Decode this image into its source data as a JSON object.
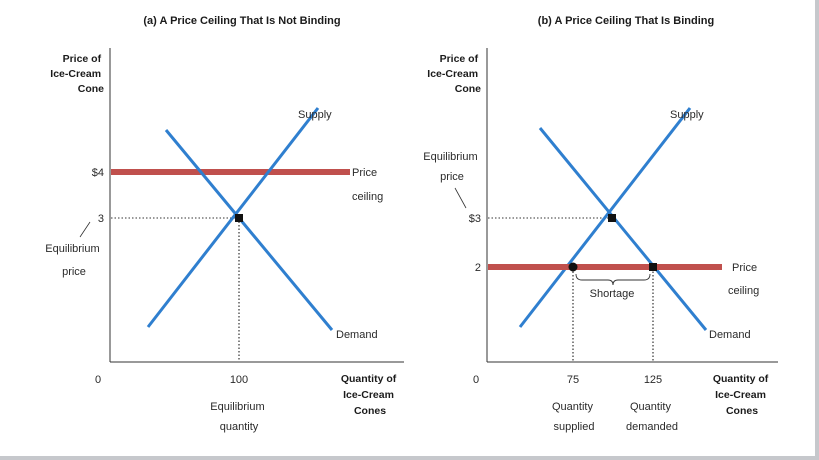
{
  "panels": [
    {
      "title": "(a) A Price Ceiling That Is Not Binding",
      "y_axis_label": [
        "Price of",
        "Ice-Cream",
        "Cone"
      ],
      "x_axis_label": [
        "Quantity of",
        "Ice-Cream",
        "Cones"
      ],
      "x_ticks": [
        "0",
        "100"
      ],
      "y_ticks": [
        "$4",
        "3"
      ],
      "supply_label": "Supply",
      "demand_label": "Demand",
      "ceiling_label": [
        "Price",
        "ceiling"
      ],
      "eq_price_label": [
        "Equilibrium",
        "price"
      ],
      "eq_quantity_label": [
        "Equilibrium",
        "quantity"
      ]
    },
    {
      "title": "(b) A Price Ceiling That Is Binding",
      "y_axis_label": [
        "Price of",
        "Ice-Cream",
        "Cone"
      ],
      "x_axis_label": [
        "Quantity of",
        "Ice-Cream",
        "Cones"
      ],
      "x_ticks": [
        "0",
        "75",
        "125"
      ],
      "y_ticks": [
        "$3",
        "2"
      ],
      "supply_label": "Supply",
      "demand_label": "Demand",
      "ceiling_label": [
        "Price",
        "ceiling"
      ],
      "eq_price_label": [
        "Equilibrium",
        "price"
      ],
      "shortage_label": "Shortage",
      "qs_label": [
        "Quantity",
        "supplied"
      ],
      "qd_label": [
        "Quantity",
        "demanded"
      ]
    }
  ],
  "colors": {
    "curve": "#2f7fcf",
    "ceiling": "#c0504d",
    "axis": "#333333",
    "frame": "#c6c8cc"
  }
}
